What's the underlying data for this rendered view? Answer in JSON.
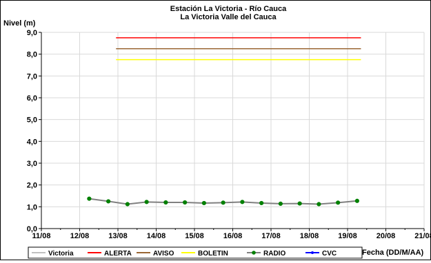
{
  "chart_data": {
    "type": "line",
    "title": "Estación La Victoria - Río Cauca",
    "subtitle": "La Victoria Valle del Cauca",
    "ylabel": "Nivel (m)",
    "xlabel": "Fecha (DD/M/AA)",
    "ylim": [
      0,
      9
    ],
    "yticks": [
      "0,0",
      "1,0",
      "2,0",
      "3,0",
      "4,0",
      "5,0",
      "6,0",
      "7,0",
      "8,0",
      "9,0"
    ],
    "xlim": [
      0,
      20
    ],
    "xticks": [
      "11/08",
      "12/08",
      "13/08",
      "14/08",
      "15/08",
      "16/08",
      "17/08",
      "18/08",
      "19/08",
      "20/08",
      "21/08"
    ],
    "grid": true,
    "legend_position": "bottom",
    "series": [
      {
        "name": "Victoria",
        "color": "#c0c0c0",
        "x": [],
        "y": []
      },
      {
        "name": "ALERTA",
        "color": "#ff0000",
        "x": [
          3.9,
          16.7
        ],
        "y": [
          8.75,
          8.75
        ]
      },
      {
        "name": "AVISO",
        "color": "#996633",
        "x": [
          3.9,
          16.7
        ],
        "y": [
          8.25,
          8.25
        ]
      },
      {
        "name": "BOLETIN",
        "color": "#ffff00",
        "x": [
          3.9,
          16.7
        ],
        "y": [
          7.75,
          7.75
        ]
      },
      {
        "name": "RADIO",
        "color": "#808080",
        "marker_color": "#008000",
        "x": [
          2.5,
          3.5,
          4.5,
          5.5,
          6.5,
          7.5,
          8.5,
          9.5,
          10.5,
          11.5,
          12.5,
          13.5,
          14.5,
          15.5,
          16.5
        ],
        "y": [
          1.37,
          1.25,
          1.12,
          1.22,
          1.2,
          1.2,
          1.17,
          1.19,
          1.22,
          1.17,
          1.14,
          1.15,
          1.12,
          1.19,
          1.27
        ]
      },
      {
        "name": "CVC",
        "color": "#0000ff",
        "x": [],
        "y": []
      }
    ]
  }
}
